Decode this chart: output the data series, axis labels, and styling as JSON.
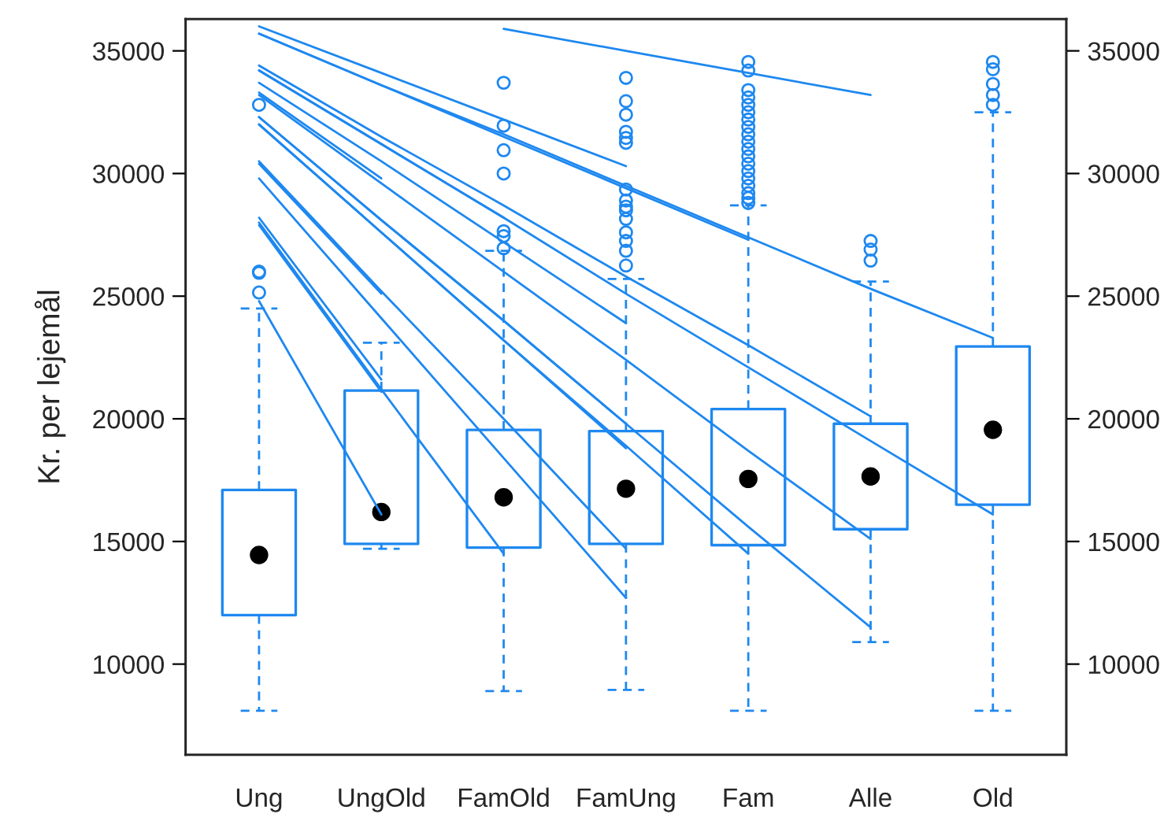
{
  "chart_data": {
    "type": "box",
    "ylabel": "Kr. per lejemål",
    "categories": [
      "Ung",
      "UngOld",
      "FamOld",
      "FamUng",
      "Fam",
      "Alle",
      "Old"
    ],
    "ylim": [
      6300,
      36300
    ],
    "yticks": [
      10000,
      15000,
      20000,
      25000,
      30000,
      35000
    ],
    "y2lim": [
      6300,
      36300
    ],
    "y2ticks": [
      10000,
      15000,
      20000,
      25000,
      30000,
      35000
    ],
    "color": "#1e88f0",
    "grid": false,
    "legend": false,
    "boxes": [
      {
        "low": 8100,
        "q1": 12000,
        "median": 14450,
        "q3": 17100,
        "high": 24500,
        "outliers": [
          32800,
          26000,
          25950,
          25150
        ]
      },
      {
        "low": 14700,
        "q1": 14900,
        "median": 16200,
        "q3": 21150,
        "high": 23100
      },
      {
        "low": 8900,
        "q1": 14750,
        "median": 16800,
        "q3": 19550,
        "high": 26850,
        "outliers": [
          33700,
          31950,
          30950,
          30000,
          27650,
          27450,
          26950
        ]
      },
      {
        "low": 8950,
        "q1": 14900,
        "median": 17150,
        "q3": 19500,
        "high": 25700,
        "outliers": [
          33900,
          32950,
          32400,
          31700,
          31450,
          31250,
          29350,
          28900,
          28650,
          28500,
          28150,
          27600,
          27250,
          26850,
          26250
        ]
      },
      {
        "low": 8100,
        "q1": 14850,
        "median": 17550,
        "q3": 20400,
        "high": 28700,
        "outliers": [
          34550,
          34200,
          33400,
          33100,
          32800,
          32500,
          32200,
          31900,
          31600,
          31300,
          31000,
          30700,
          30400,
          30100,
          29800,
          29500,
          29200,
          29000,
          28800
        ]
      },
      {
        "low": 10900,
        "q1": 15500,
        "median": 17650,
        "q3": 19800,
        "high": 25600,
        "outliers": [
          27250,
          26900,
          26450
        ]
      },
      {
        "low": 8100,
        "q1": 16500,
        "median": 19550,
        "q3": 22950,
        "high": 32500,
        "outliers": [
          34550,
          34250,
          33650,
          33200,
          32800
        ]
      }
    ],
    "series": [
      {
        "type": "line",
        "color": "#1e88f0",
        "values": [
          28200,
          21600,
          null,
          null,
          null,
          null,
          null
        ]
      },
      {
        "type": "line",
        "color": "#1e88f0",
        "values": [
          24800,
          16100,
          null,
          null,
          null,
          null,
          null
        ]
      },
      {
        "type": "line",
        "color": "#1e88f0",
        "values": [
          27900,
          21100,
          null,
          null,
          null,
          null,
          null
        ]
      },
      {
        "type": "line",
        "color": "#1e88f0",
        "values": [
          30400,
          25100,
          null,
          null,
          null,
          null,
          null
        ]
      },
      {
        "type": "line",
        "color": "#1e88f0",
        "values": [
          33300,
          29800,
          null,
          null,
          null,
          null,
          null
        ]
      },
      {
        "type": "line",
        "color": "#1e88f0",
        "values": [
          28000,
          21200,
          14500,
          null,
          null,
          null,
          null
        ]
      },
      {
        "type": "line",
        "color": "#1e88f0",
        "values": [
          30500,
          25200,
          20000,
          14700,
          null,
          null,
          null
        ]
      },
      {
        "type": "line",
        "color": "#1e88f0",
        "values": [
          32300,
          28100,
          24000,
          19800,
          null,
          null,
          null
        ]
      },
      {
        "type": "line",
        "color": "#1e88f0",
        "values": [
          34200,
          31200,
          28200,
          null,
          null,
          null,
          null
        ]
      },
      {
        "type": "line",
        "color": "#1e88f0",
        "values": [
          29800,
          24100,
          18400,
          12700,
          null,
          null,
          null
        ]
      },
      {
        "type": "line",
        "color": "#1e88f0",
        "values": [
          32000,
          27600,
          23200,
          18800,
          null,
          null,
          null
        ]
      },
      {
        "type": "line",
        "color": "#1e88f0",
        "values": [
          33700,
          30500,
          27200,
          23900,
          null,
          null,
          null
        ]
      },
      {
        "type": "line",
        "color": "#1e88f0",
        "values": [
          36000,
          34100,
          32200,
          30300,
          null,
          null,
          null
        ]
      },
      {
        "type": "line",
        "color": "#1e88f0",
        "values": [
          32000,
          27600,
          23200,
          18900,
          14500,
          null,
          null
        ]
      },
      {
        "type": "line",
        "color": "#1e88f0",
        "values": [
          33200,
          29600,
          26000,
          22400,
          18700,
          15100,
          null
        ]
      },
      {
        "type": "line",
        "color": "#1e88f0",
        "values": [
          34400,
          31500,
          28700,
          25800,
          23000,
          20100,
          null
        ]
      },
      {
        "type": "line",
        "color": "#1e88f0",
        "values": [
          35700,
          33600,
          31500,
          29400,
          27300,
          null,
          null
        ]
      },
      {
        "type": "line",
        "color": "#1e88f0",
        "values": [
          32300,
          28100,
          24000,
          19800,
          15600,
          11500,
          null
        ]
      },
      {
        "type": "line",
        "color": "#1e88f0",
        "values": [
          34200,
          31200,
          28200,
          25100,
          22100,
          19100,
          16100
        ]
      },
      {
        "type": "line",
        "color": "#1e88f0",
        "values": [
          35700,
          33600,
          31600,
          29500,
          27400,
          25300,
          23300
        ]
      },
      {
        "type": "line",
        "color": "#1e88f0",
        "values": [
          null,
          null,
          35900,
          35000,
          34100,
          33200,
          null
        ]
      }
    ]
  }
}
